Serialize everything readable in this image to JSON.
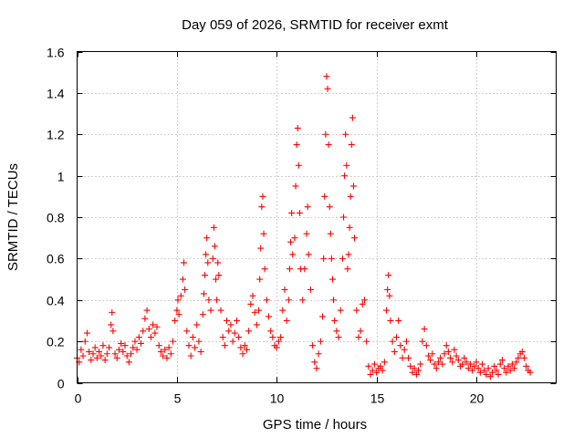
{
  "chart_data": {
    "type": "scatter",
    "title": "Day 059 of 2026, SRMTID for receiver exmt",
    "xlabel": "GPS time / hours",
    "ylabel": "SRMTID / TECUs",
    "xlim": [
      0,
      24
    ],
    "ylim": [
      0,
      1.6
    ],
    "xticks": [
      0,
      5,
      10,
      15,
      20
    ],
    "xtick_labels": [
      "0",
      "5",
      "10",
      "15",
      "20"
    ],
    "yticks": [
      0,
      0.2,
      0.4,
      0.6,
      0.8,
      1,
      1.2,
      1.4,
      1.6
    ],
    "ytick_labels": [
      "0",
      "0.2",
      "0.4",
      "0.6",
      "0.8",
      "1",
      "1.2",
      "1.4",
      "1.6"
    ],
    "grid": true,
    "marker": "plus",
    "marker_color": "#ff0000",
    "series": [
      {
        "name": "SRMTID",
        "points": [
          [
            0.0,
            0.12
          ],
          [
            0.1,
            0.1
          ],
          [
            0.2,
            0.16
          ],
          [
            0.3,
            0.13
          ],
          [
            0.4,
            0.2
          ],
          [
            0.5,
            0.24
          ],
          [
            0.6,
            0.15
          ],
          [
            0.7,
            0.11
          ],
          [
            0.8,
            0.14
          ],
          [
            0.9,
            0.17
          ],
          [
            1.0,
            0.12
          ],
          [
            1.1,
            0.15
          ],
          [
            1.2,
            0.13
          ],
          [
            1.3,
            0.18
          ],
          [
            1.4,
            0.11
          ],
          [
            1.5,
            0.14
          ],
          [
            1.6,
            0.17
          ],
          [
            1.7,
            0.28
          ],
          [
            1.75,
            0.34
          ],
          [
            1.8,
            0.25
          ],
          [
            1.9,
            0.14
          ],
          [
            2.0,
            0.12
          ],
          [
            2.1,
            0.16
          ],
          [
            2.2,
            0.19
          ],
          [
            2.3,
            0.15
          ],
          [
            2.4,
            0.18
          ],
          [
            2.5,
            0.13
          ],
          [
            2.6,
            0.1
          ],
          [
            2.7,
            0.14
          ],
          [
            2.8,
            0.17
          ],
          [
            2.9,
            0.2
          ],
          [
            3.0,
            0.16
          ],
          [
            3.1,
            0.22
          ],
          [
            3.2,
            0.19
          ],
          [
            3.3,
            0.25
          ],
          [
            3.4,
            0.31
          ],
          [
            3.5,
            0.35
          ],
          [
            3.6,
            0.26
          ],
          [
            3.7,
            0.22
          ],
          [
            3.8,
            0.28
          ],
          [
            3.9,
            0.24
          ],
          [
            4.0,
            0.27
          ],
          [
            4.1,
            0.18
          ],
          [
            4.2,
            0.15
          ],
          [
            4.3,
            0.13
          ],
          [
            4.4,
            0.16
          ],
          [
            4.5,
            0.12
          ],
          [
            4.6,
            0.17
          ],
          [
            4.7,
            0.14
          ],
          [
            4.8,
            0.2
          ],
          [
            4.9,
            0.3
          ],
          [
            5.0,
            0.35
          ],
          [
            5.05,
            0.4
          ],
          [
            5.1,
            0.33
          ],
          [
            5.2,
            0.42
          ],
          [
            5.3,
            0.5
          ],
          [
            5.35,
            0.58
          ],
          [
            5.4,
            0.45
          ],
          [
            5.5,
            0.25
          ],
          [
            5.6,
            0.18
          ],
          [
            5.7,
            0.13
          ],
          [
            5.8,
            0.22
          ],
          [
            5.9,
            0.17
          ],
          [
            6.0,
            0.28
          ],
          [
            6.1,
            0.2
          ],
          [
            6.2,
            0.15
          ],
          [
            6.3,
            0.33
          ],
          [
            6.35,
            0.43
          ],
          [
            6.4,
            0.52
          ],
          [
            6.45,
            0.62
          ],
          [
            6.5,
            0.7
          ],
          [
            6.55,
            0.58
          ],
          [
            6.6,
            0.4
          ],
          [
            6.7,
            0.35
          ],
          [
            6.8,
            0.6
          ],
          [
            6.85,
            0.75
          ],
          [
            6.9,
            0.66
          ],
          [
            6.95,
            0.5
          ],
          [
            7.0,
            0.4
          ],
          [
            7.05,
            0.58
          ],
          [
            7.1,
            0.52
          ],
          [
            7.2,
            0.35
          ],
          [
            7.3,
            0.22
          ],
          [
            7.4,
            0.18
          ],
          [
            7.5,
            0.3
          ],
          [
            7.6,
            0.25
          ],
          [
            7.7,
            0.28
          ],
          [
            7.8,
            0.2
          ],
          [
            7.9,
            0.24
          ],
          [
            8.0,
            0.3
          ],
          [
            8.1,
            0.22
          ],
          [
            8.2,
            0.17
          ],
          [
            8.3,
            0.14
          ],
          [
            8.4,
            0.18
          ],
          [
            8.5,
            0.16
          ],
          [
            8.6,
            0.25
          ],
          [
            8.7,
            0.38
          ],
          [
            8.8,
            0.42
          ],
          [
            8.9,
            0.34
          ],
          [
            9.0,
            0.28
          ],
          [
            9.1,
            0.35
          ],
          [
            9.15,
            0.5
          ],
          [
            9.2,
            0.65
          ],
          [
            9.25,
            0.85
          ],
          [
            9.3,
            0.9
          ],
          [
            9.35,
            0.72
          ],
          [
            9.4,
            0.55
          ],
          [
            9.5,
            0.4
          ],
          [
            9.6,
            0.32
          ],
          [
            9.7,
            0.25
          ],
          [
            9.8,
            0.22
          ],
          [
            9.9,
            0.18
          ],
          [
            10.0,
            0.17
          ],
          [
            10.1,
            0.2
          ],
          [
            10.2,
            0.22
          ],
          [
            10.3,
            0.35
          ],
          [
            10.4,
            0.45
          ],
          [
            10.5,
            0.3
          ],
          [
            10.6,
            0.4
          ],
          [
            10.65,
            0.55
          ],
          [
            10.7,
            0.68
          ],
          [
            10.75,
            0.82
          ],
          [
            10.8,
            0.62
          ],
          [
            10.9,
            0.7
          ],
          [
            10.95,
            0.95
          ],
          [
            11.0,
            1.15
          ],
          [
            11.05,
            1.23
          ],
          [
            11.1,
            1.05
          ],
          [
            11.15,
            0.82
          ],
          [
            11.2,
            0.55
          ],
          [
            11.3,
            0.4
          ],
          [
            11.4,
            0.55
          ],
          [
            11.5,
            0.72
          ],
          [
            11.55,
            0.85
          ],
          [
            11.6,
            0.62
          ],
          [
            11.7,
            0.45
          ],
          [
            11.8,
            0.18
          ],
          [
            11.9,
            0.1
          ],
          [
            12.0,
            0.07
          ],
          [
            12.1,
            0.14
          ],
          [
            12.2,
            0.2
          ],
          [
            12.3,
            0.32
          ],
          [
            12.35,
            0.6
          ],
          [
            12.4,
            0.9
          ],
          [
            12.45,
            1.2
          ],
          [
            12.5,
            1.48
          ],
          [
            12.55,
            1.42
          ],
          [
            12.6,
            1.15
          ],
          [
            12.65,
            0.85
          ],
          [
            12.7,
            0.72
          ],
          [
            12.75,
            0.6
          ],
          [
            12.8,
            0.5
          ],
          [
            12.85,
            0.4
          ],
          [
            12.9,
            0.3
          ],
          [
            13.0,
            0.25
          ],
          [
            13.1,
            0.22
          ],
          [
            13.2,
            0.35
          ],
          [
            13.3,
            0.6
          ],
          [
            13.35,
            0.8
          ],
          [
            13.4,
            1.0
          ],
          [
            13.45,
            1.2
          ],
          [
            13.5,
            1.05
          ],
          [
            13.55,
            0.55
          ],
          [
            13.6,
            0.62
          ],
          [
            13.65,
            0.75
          ],
          [
            13.7,
            0.9
          ],
          [
            13.75,
            1.15
          ],
          [
            13.8,
            1.28
          ],
          [
            13.85,
            0.95
          ],
          [
            13.9,
            0.7
          ],
          [
            14.0,
            0.35
          ],
          [
            14.1,
            0.22
          ],
          [
            14.2,
            0.25
          ],
          [
            14.3,
            0.38
          ],
          [
            14.4,
            0.4
          ],
          [
            14.5,
            0.2
          ],
          [
            14.6,
            0.08
          ],
          [
            14.7,
            0.04
          ],
          [
            14.8,
            0.06
          ],
          [
            14.9,
            0.09
          ],
          [
            15.0,
            0.05
          ],
          [
            15.1,
            0.07
          ],
          [
            15.2,
            0.08
          ],
          [
            15.3,
            0.06
          ],
          [
            15.4,
            0.1
          ],
          [
            15.5,
            0.35
          ],
          [
            15.55,
            0.45
          ],
          [
            15.6,
            0.52
          ],
          [
            15.65,
            0.42
          ],
          [
            15.7,
            0.3
          ],
          [
            15.8,
            0.2
          ],
          [
            15.9,
            0.15
          ],
          [
            16.0,
            0.22
          ],
          [
            16.1,
            0.3
          ],
          [
            16.2,
            0.18
          ],
          [
            16.3,
            0.12
          ],
          [
            16.4,
            0.16
          ],
          [
            16.5,
            0.2
          ],
          [
            16.6,
            0.12
          ],
          [
            16.7,
            0.08
          ],
          [
            16.8,
            0.05
          ],
          [
            16.9,
            0.07
          ],
          [
            17.0,
            0.04
          ],
          [
            17.1,
            0.06
          ],
          [
            17.2,
            0.09
          ],
          [
            17.3,
            0.2
          ],
          [
            17.4,
            0.26
          ],
          [
            17.5,
            0.18
          ],
          [
            17.6,
            0.13
          ],
          [
            17.7,
            0.11
          ],
          [
            17.8,
            0.14
          ],
          [
            17.9,
            0.09
          ],
          [
            18.0,
            0.07
          ],
          [
            18.1,
            0.1
          ],
          [
            18.2,
            0.12
          ],
          [
            18.3,
            0.09
          ],
          [
            18.4,
            0.14
          ],
          [
            18.5,
            0.18
          ],
          [
            18.6,
            0.15
          ],
          [
            18.7,
            0.12
          ],
          [
            18.8,
            0.1
          ],
          [
            18.9,
            0.16
          ],
          [
            19.0,
            0.13
          ],
          [
            19.1,
            0.11
          ],
          [
            19.2,
            0.08
          ],
          [
            19.3,
            0.09
          ],
          [
            19.4,
            0.12
          ],
          [
            19.5,
            0.1
          ],
          [
            19.6,
            0.07
          ],
          [
            19.7,
            0.09
          ],
          [
            19.8,
            0.06
          ],
          [
            19.9,
            0.08
          ],
          [
            20.0,
            0.1
          ],
          [
            20.1,
            0.07
          ],
          [
            20.2,
            0.05
          ],
          [
            20.3,
            0.09
          ],
          [
            20.4,
            0.06
          ],
          [
            20.5,
            0.04
          ],
          [
            20.6,
            0.07
          ],
          [
            20.7,
            0.03
          ],
          [
            20.8,
            0.05
          ],
          [
            20.9,
            0.08
          ],
          [
            21.0,
            0.06
          ],
          [
            21.1,
            0.04
          ],
          [
            21.2,
            0.09
          ],
          [
            21.3,
            0.11
          ],
          [
            21.4,
            0.07
          ],
          [
            21.5,
            0.05
          ],
          [
            21.6,
            0.08
          ],
          [
            21.7,
            0.06
          ],
          [
            21.8,
            0.09
          ],
          [
            21.9,
            0.07
          ],
          [
            22.0,
            0.1
          ],
          [
            22.1,
            0.12
          ],
          [
            22.2,
            0.14
          ],
          [
            22.3,
            0.15
          ],
          [
            22.4,
            0.12
          ],
          [
            22.5,
            0.08
          ],
          [
            22.6,
            0.06
          ],
          [
            22.7,
            0.05
          ]
        ]
      }
    ]
  }
}
